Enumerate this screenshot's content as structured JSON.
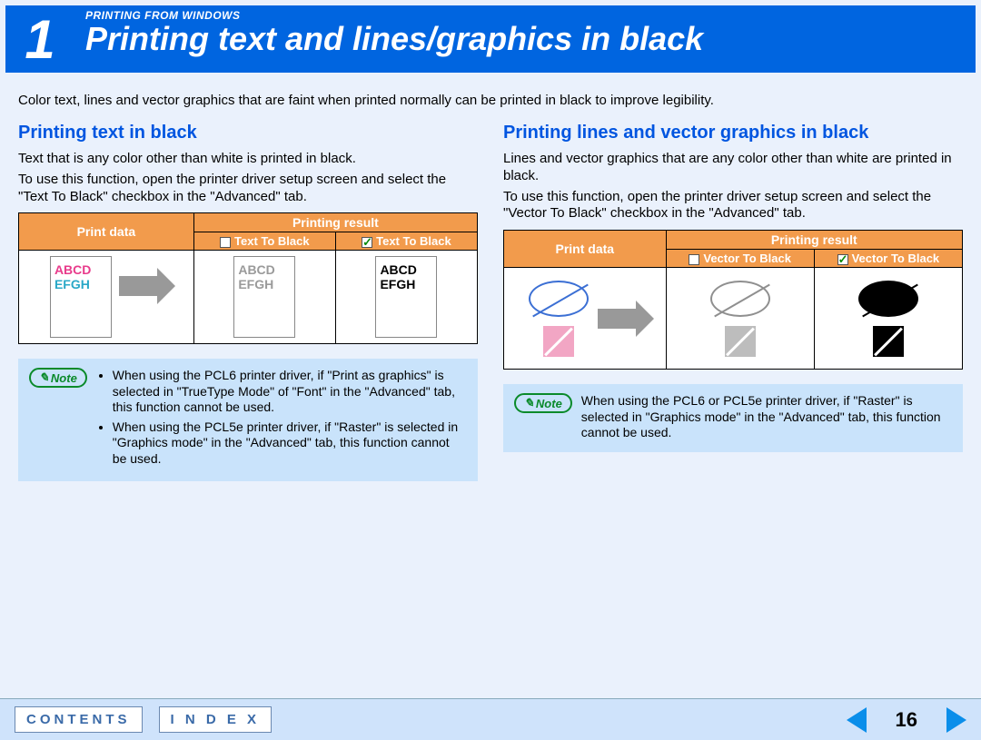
{
  "header": {
    "chapter_number": "1",
    "overline": "PRINTING FROM WINDOWS",
    "title": "Printing text and lines/graphics in black"
  },
  "intro": "Color text, lines and vector graphics that are faint when printed normally can be printed in black to improve legibility.",
  "left": {
    "heading": "Printing text in black",
    "p1": "Text that is any color other than white is printed in black.",
    "p2": "To use this function, open the printer driver setup screen and select the \"Text To Black\" checkbox in the \"Advanced\" tab.",
    "table": {
      "h_printdata": "Print data",
      "h_result": "Printing result",
      "sub_unchecked": "Text To Black",
      "sub_checked": "Text To Black",
      "sample_l1": "ABCD",
      "sample_l2": "EFGH",
      "colors": {
        "magenta": "#e83b8b",
        "cyan": "#2aa8c7",
        "grey": "#9a9a9a",
        "black": "#000000"
      }
    },
    "note_label": "Note",
    "note_b1": "When using the PCL6 printer driver, if \"Print as graphics\" is selected in \"TrueType Mode\" of \"Font\" in the \"Advanced\" tab, this function cannot be used.",
    "note_b2": "When using the PCL5e printer driver, if \"Raster\" is selected in \"Graphics mode\" in the \"Advanced\" tab, this function cannot be used."
  },
  "right": {
    "heading": "Printing lines and vector graphics in black",
    "p1": "Lines and vector graphics that are any color other than white are printed in black.",
    "p2": "To use this function, open the printer driver setup screen and select the \"Vector To Black\" checkbox in the \"Advanced\" tab.",
    "table": {
      "h_printdata": "Print data",
      "h_result": "Printing result",
      "sub_unchecked": "Vector To Black",
      "sub_checked": "Vector To Black",
      "colors": {
        "ellipse_stroke_blue": "#3b6fd4",
        "ellipse_fill_pink": "#f2a6c4",
        "ellipse_stroke_grey": "#8f8f8f",
        "sq_fill_grey": "#bdbdbd",
        "black": "#000000",
        "white": "#ffffff"
      }
    },
    "note_label": "Note",
    "note_text": "When using the PCL6 or PCL5e printer driver, if \"Raster\" is selected in \"Graphics mode\" in the \"Advanced\" tab, this function cannot be used."
  },
  "footer": {
    "contents": "CONTENTS",
    "index": "I N D E X",
    "page": "16"
  },
  "theme": {
    "header_bg": "#0065e0",
    "page_bg": "#eaf1fc",
    "accent_orange": "#f29b4c",
    "note_bg": "#c9e3fb",
    "link_blue": "#0055e0"
  }
}
